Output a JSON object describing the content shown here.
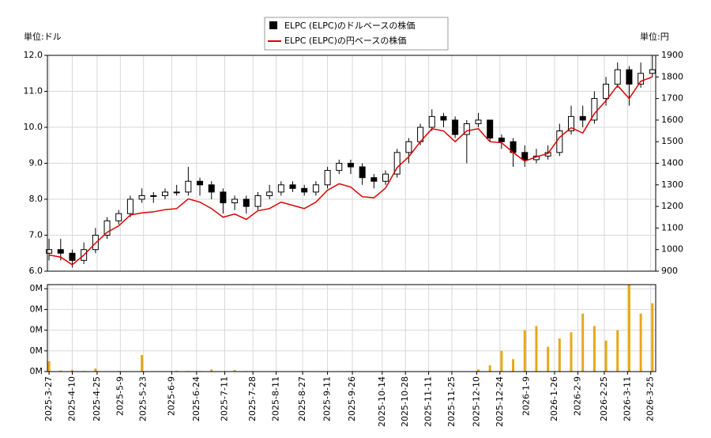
{
  "chart_data": [
    {
      "type": "candlestick",
      "y_unit_label": "単位:ドル",
      "y2_unit_label": "単位:円",
      "x": [
        "2025-3-27",
        "2025-4-3",
        "2025-4-10",
        "2025-4-17",
        "2025-4-24",
        "2025-5-1",
        "2025-5-8",
        "2025-5-15",
        "2025-5-22",
        "2025-5-29",
        "2025-6-5",
        "2025-6-12",
        "2025-6-19",
        "2025-6-26",
        "2025-7-3",
        "2025-7-10",
        "2025-7-17",
        "2025-7-24",
        "2025-7-31",
        "2025-8-7",
        "2025-8-14",
        "2025-8-21",
        "2025-8-28",
        "2025-9-4",
        "2025-9-11",
        "2025-9-18",
        "2025-9-25",
        "2025-10-2",
        "2025-10-9",
        "2025-10-16",
        "2025-10-23",
        "2025-10-30",
        "2025-11-6",
        "2025-11-13",
        "2025-11-20",
        "2025-11-27",
        "2025-12-4",
        "2025-12-11",
        "2025-12-18",
        "2025-12-25",
        "2026-1-1",
        "2026-1-8",
        "2026-1-15",
        "2026-1-22",
        "2026-1-29",
        "2026-2-5",
        "2026-2-12",
        "2026-2-19",
        "2026-2-26",
        "2026-3-5",
        "2026-3-12",
        "2026-3-19",
        "2026-3-26"
      ],
      "xlim": [
        "2025-3-26",
        "2026-3-28"
      ],
      "candles": {
        "name": "ELPC (ELPC)のドルベースの株価",
        "color": "#000000",
        "open": [
          6.5,
          6.6,
          6.5,
          6.3,
          6.6,
          7.0,
          7.4,
          7.6,
          8.0,
          8.1,
          8.1,
          8.2,
          8.2,
          8.5,
          8.4,
          8.2,
          7.9,
          8.0,
          7.8,
          8.1,
          8.2,
          8.4,
          8.3,
          8.2,
          8.4,
          8.8,
          9.0,
          8.9,
          8.6,
          8.5,
          8.7,
          9.3,
          9.6,
          10.0,
          10.3,
          10.2,
          9.8,
          10.1,
          10.2,
          9.7,
          9.6,
          9.3,
          9.1,
          9.2,
          9.3,
          9.9,
          10.3,
          10.2,
          10.8,
          11.2,
          11.6,
          11.2,
          11.5
        ],
        "high": [
          6.9,
          6.9,
          6.6,
          6.8,
          7.2,
          7.5,
          7.7,
          8.1,
          8.3,
          8.2,
          8.3,
          8.4,
          8.9,
          8.6,
          8.5,
          8.3,
          8.1,
          8.1,
          8.2,
          8.4,
          8.5,
          8.5,
          8.4,
          8.5,
          8.9,
          9.1,
          9.1,
          9.0,
          8.7,
          8.8,
          9.4,
          9.7,
          10.1,
          10.5,
          10.4,
          10.3,
          10.2,
          10.4,
          10.2,
          9.8,
          9.7,
          9.5,
          9.4,
          9.5,
          10.1,
          10.6,
          10.6,
          11.0,
          11.4,
          11.8,
          11.7,
          11.8,
          12.0
        ],
        "low": [
          6.3,
          6.3,
          6.1,
          6.2,
          6.5,
          6.9,
          7.3,
          7.5,
          7.9,
          7.9,
          8.0,
          8.1,
          8.1,
          8.1,
          8.0,
          7.6,
          7.7,
          7.6,
          7.7,
          8.0,
          8.1,
          8.2,
          8.1,
          8.1,
          8.3,
          8.7,
          8.7,
          8.4,
          8.3,
          8.4,
          8.6,
          9.0,
          9.5,
          9.9,
          10.0,
          9.7,
          9.0,
          10.0,
          9.6,
          9.4,
          8.9,
          8.9,
          9.0,
          9.1,
          9.2,
          9.8,
          10.0,
          10.1,
          10.6,
          11.1,
          10.6,
          11.1,
          11.4
        ],
        "close": [
          6.6,
          6.5,
          6.3,
          6.6,
          7.0,
          7.4,
          7.6,
          8.0,
          8.1,
          8.1,
          8.2,
          8.2,
          8.5,
          8.4,
          8.2,
          7.9,
          8.0,
          7.8,
          8.1,
          8.2,
          8.4,
          8.3,
          8.2,
          8.4,
          8.8,
          9.0,
          8.9,
          8.6,
          8.5,
          8.7,
          9.3,
          9.6,
          10.0,
          10.3,
          10.2,
          9.8,
          10.1,
          10.2,
          9.7,
          9.6,
          9.3,
          9.1,
          9.2,
          9.3,
          9.9,
          10.3,
          10.2,
          10.8,
          11.2,
          11.6,
          11.2,
          11.5,
          11.6
        ]
      },
      "series": [
        {
          "name": "ELPC (ELPC)の円ベースの株価",
          "color": "#dd0000",
          "axis": "y2",
          "values": [
            975,
            965,
            930,
            975,
            1030,
            1080,
            1110,
            1160,
            1170,
            1175,
            1185,
            1190,
            1235,
            1220,
            1190,
            1150,
            1165,
            1140,
            1180,
            1190,
            1220,
            1205,
            1190,
            1220,
            1275,
            1305,
            1290,
            1245,
            1240,
            1285,
            1380,
            1430,
            1500,
            1560,
            1550,
            1500,
            1550,
            1560,
            1500,
            1495,
            1450,
            1410,
            1430,
            1445,
            1520,
            1565,
            1540,
            1630,
            1690,
            1760,
            1700,
            1780,
            1800
          ]
        }
      ],
      "ylim": [
        6,
        12
      ],
      "yticks": [
        {
          "value": 6,
          "label": "6.0"
        },
        {
          "value": 7,
          "label": "7.0"
        },
        {
          "value": 8,
          "label": "8.0"
        },
        {
          "value": 9,
          "label": "9.0"
        },
        {
          "value": 10,
          "label": "10.0"
        },
        {
          "value": 11,
          "label": "11.0"
        },
        {
          "value": 12,
          "label": "12.0"
        }
      ],
      "y2lim": [
        900,
        1900
      ],
      "y2ticks": [
        900,
        1000,
        1100,
        1200,
        1300,
        1400,
        1500,
        1600,
        1700,
        1800,
        1900
      ],
      "grid": true
    },
    {
      "type": "bar",
      "color": "#e6a817",
      "x": [
        "2025-3-27",
        "2025-4-3",
        "2025-4-10",
        "2025-4-17",
        "2025-4-24",
        "2025-5-1",
        "2025-5-8",
        "2025-5-15",
        "2025-5-22",
        "2025-5-29",
        "2025-6-5",
        "2025-6-12",
        "2025-6-19",
        "2025-6-26",
        "2025-7-3",
        "2025-7-10",
        "2025-7-17",
        "2025-7-24",
        "2025-7-31",
        "2025-8-7",
        "2025-8-14",
        "2025-8-21",
        "2025-8-28",
        "2025-9-4",
        "2025-9-11",
        "2025-9-18",
        "2025-9-25",
        "2025-10-2",
        "2025-10-9",
        "2025-10-16",
        "2025-10-23",
        "2025-10-30",
        "2025-11-6",
        "2025-11-13",
        "2025-11-20",
        "2025-11-27",
        "2025-12-4",
        "2025-12-11",
        "2025-12-18",
        "2025-12-25",
        "2026-1-1",
        "2026-1-8",
        "2026-1-15",
        "2026-1-22",
        "2026-1-29",
        "2026-2-5",
        "2026-2-12",
        "2026-2-19",
        "2026-2-26",
        "2026-3-5",
        "2026-3-12",
        "2026-3-19",
        "2026-3-26"
      ],
      "values": [
        5000,
        500,
        800,
        300,
        1500,
        200,
        300,
        200,
        8000,
        200,
        200,
        400,
        300,
        300,
        1000,
        200,
        800,
        300,
        200,
        200,
        100,
        100,
        200,
        100,
        100,
        100,
        100,
        100,
        100,
        100,
        100,
        100,
        100,
        100,
        100,
        100,
        100,
        1000,
        3000,
        10000,
        6000,
        20000,
        22000,
        12000,
        16000,
        19000,
        28000,
        22000,
        15000,
        20000,
        42000,
        28000,
        33000
      ],
      "xlim": [
        "2025-3-26",
        "2026-3-28"
      ],
      "xticks": [
        "2025-3-27",
        "2025-4-10",
        "2025-4-25",
        "2025-5-9",
        "2025-5-23",
        "2025-6-9",
        "2025-6-24",
        "2025-7-11",
        "2025-7-28",
        "2025-8-11",
        "2025-8-27",
        "2025-9-11",
        "2025-9-26",
        "2025-10-14",
        "2025-10-28",
        "2025-11-11",
        "2025-11-25",
        "2025-12-10",
        "2025-12-24",
        "2026-1-9",
        "2026-1-26",
        "2026-2-9",
        "2026-2-25",
        "2026-3-11",
        "2026-3-25"
      ],
      "ylim": [
        0,
        42000
      ],
      "yticks": [
        {
          "value": 0,
          "label": "0M"
        },
        {
          "value": 10000,
          "label": "0M"
        },
        {
          "value": 20000,
          "label": "0M"
        },
        {
          "value": 30000,
          "label": "0M"
        },
        {
          "value": 40000,
          "label": "0M"
        }
      ],
      "grid": true
    }
  ]
}
